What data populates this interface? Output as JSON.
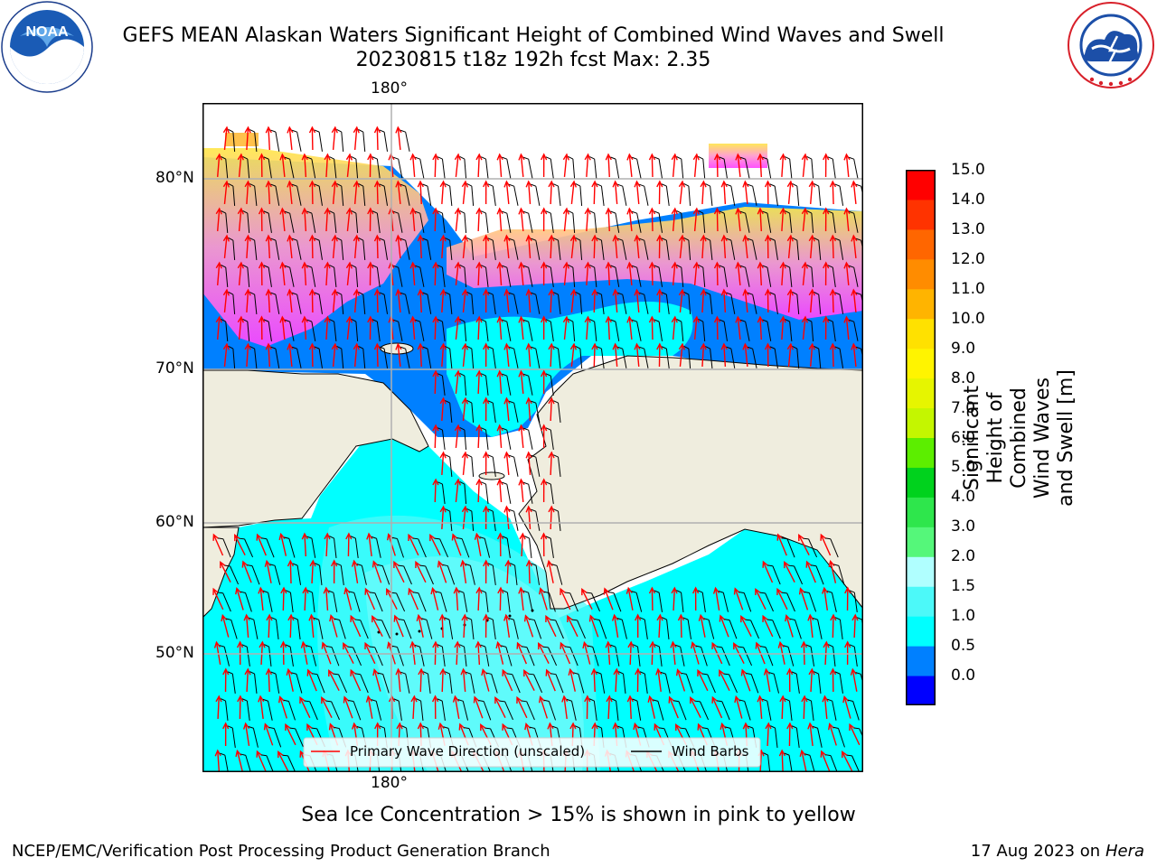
{
  "header": {
    "title_line1": "GEFS MEAN Alaskan Waters Significant Height of Combined Wind Waves and Swell",
    "title_line2": "20230815 t18z 192h fcst   Max: 2.35"
  },
  "logos": {
    "left": {
      "icon": "noaa-logo",
      "text": "NOAA"
    },
    "right": {
      "icon": "nws-logo",
      "ring_text": "NATIONAL WEATHER SERVICE"
    }
  },
  "chart_data": {
    "type": "heatmap",
    "title": "GEFS MEAN Alaskan Waters Significant Height of Combined Wind Waves and Swell",
    "subtitle": "20230815 t18z 192h fcst   Max: 2.35",
    "max_value": 2.35,
    "variable": "Significant Height of Combined Wind Waves and Swell [m]",
    "x_ticks": [
      "180°"
    ],
    "y_ticks": [
      "80°N",
      "70°N",
      "60°N",
      "50°N"
    ],
    "grid": true,
    "legend_position": "bottom-center",
    "legend": [
      {
        "label": "Primary Wave Direction (unscaled)",
        "color": "#ff0000"
      },
      {
        "label": "Wind Barbs",
        "color": "#000000"
      }
    ],
    "colorbar": {
      "title": "Significant Height of Combined\nWind Waves and Swell [m]",
      "bounds": [
        0.0,
        0.5,
        1.0,
        1.5,
        2.0,
        3.0,
        4.0,
        5.0,
        6.0,
        7.0,
        8.0,
        9.0,
        10.0,
        11.0,
        12.0,
        13.0,
        14.0,
        15.0
      ],
      "labels": [
        "15.0",
        "14.0",
        "13.0",
        "12.0",
        "11.0",
        "10.0",
        "9.0",
        "8.0",
        "7.0",
        "6.0",
        "5.0",
        "4.0",
        "3.0",
        "2.0",
        "1.5",
        "1.0",
        "0.5",
        "0.0"
      ],
      "colors": [
        "#0000ff",
        "#0080ff",
        "#00ffff",
        "#4cf9f9",
        "#b0ffff",
        "#55f77a",
        "#2ee64c",
        "#00d21d",
        "#5cee00",
        "#c4f600",
        "#e6f500",
        "#fff400",
        "#ffe100",
        "#ffb400",
        "#ff8c00",
        "#ff6600",
        "#ff3300",
        "#ff0000"
      ]
    },
    "colors": {
      "land": "#efedde",
      "ice_low": "#ff44ff",
      "ice_high": "#ffe64c",
      "wave_arrow": "#ff0000",
      "wind_barb": "#000000"
    }
  },
  "footer": {
    "note": "Sea Ice Concentration > 15% is shown in pink to yellow",
    "credit": "NCEP/EMC/Verification Post Processing Product Generation Branch",
    "date": "17 Aug 2023 on",
    "host": "Hera"
  }
}
